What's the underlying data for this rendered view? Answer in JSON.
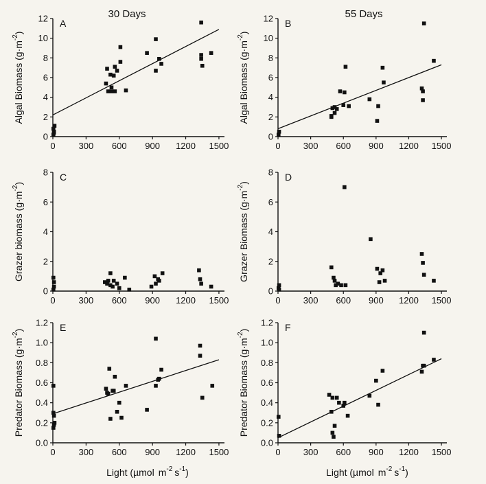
{
  "figure": {
    "col_titles": [
      "30 Days",
      "55 Days"
    ],
    "xlabel_prefix": "Light (µmol",
    "xlabel_unit": "m",
    "xlabel_exp1": "-2",
    "xlabel_s": "s",
    "xlabel_exp2": "-1",
    "xlabel_close": ")"
  },
  "chart_data": [
    {
      "type": "scatter",
      "panel": "A",
      "title": "30 Days",
      "ylabel": "Algal Biomass (g·m",
      "ylabel_exp": "-2",
      "ylabel_close": ")",
      "xlim": [
        0,
        1550
      ],
      "ylim": [
        0,
        12
      ],
      "xticks": [
        0,
        300,
        600,
        900,
        1200,
        1500
      ],
      "yticks": [
        0,
        2,
        4,
        6,
        8,
        10,
        12
      ],
      "points": [
        [
          5,
          0.2
        ],
        [
          10,
          0.5
        ],
        [
          5,
          0.8
        ],
        [
          15,
          1.1
        ],
        [
          10,
          0.4
        ],
        [
          490,
          6.9
        ],
        [
          480,
          5.4
        ],
        [
          500,
          4.6
        ],
        [
          520,
          6.3
        ],
        [
          530,
          4.6
        ],
        [
          530,
          5.0
        ],
        [
          550,
          6.2
        ],
        [
          560,
          4.6
        ],
        [
          560,
          7.1
        ],
        [
          580,
          6.7
        ],
        [
          610,
          7.6
        ],
        [
          610,
          9.1
        ],
        [
          660,
          4.7
        ],
        [
          850,
          8.5
        ],
        [
          930,
          9.9
        ],
        [
          930,
          6.7
        ],
        [
          960,
          7.9
        ],
        [
          980,
          7.4
        ],
        [
          1340,
          11.6
        ],
        [
          1340,
          7.9
        ],
        [
          1350,
          7.2
        ],
        [
          1340,
          8.3
        ],
        [
          1430,
          8.5
        ]
      ],
      "fit": {
        "x": [
          0,
          1500
        ],
        "y": [
          2.2,
          10.9
        ]
      }
    },
    {
      "type": "scatter",
      "panel": "B",
      "title": "55 Days",
      "ylabel": "Algal Biomass (g·m",
      "ylabel_exp": "-2",
      "ylabel_close": ")",
      "xlim": [
        0,
        1550
      ],
      "ylim": [
        0,
        12
      ],
      "xticks": [
        0,
        300,
        600,
        900,
        1200,
        1500
      ],
      "yticks": [
        0,
        2,
        4,
        6,
        8,
        10,
        12
      ],
      "points": [
        [
          5,
          0.2
        ],
        [
          10,
          0.5
        ],
        [
          490,
          2.1
        ],
        [
          490,
          2.0
        ],
        [
          500,
          2.9
        ],
        [
          520,
          2.4
        ],
        [
          520,
          3.0
        ],
        [
          540,
          2.8
        ],
        [
          570,
          4.6
        ],
        [
          600,
          3.2
        ],
        [
          610,
          4.5
        ],
        [
          620,
          7.1
        ],
        [
          650,
          3.1
        ],
        [
          840,
          3.8
        ],
        [
          910,
          1.6
        ],
        [
          920,
          3.1
        ],
        [
          960,
          7.0
        ],
        [
          970,
          5.5
        ],
        [
          1320,
          4.9
        ],
        [
          1330,
          4.6
        ],
        [
          1330,
          3.7
        ],
        [
          1340,
          11.5
        ],
        [
          1430,
          7.7
        ]
      ],
      "fit": {
        "x": [
          0,
          1500
        ],
        "y": [
          0.8,
          7.3
        ]
      }
    },
    {
      "type": "scatter",
      "panel": "C",
      "title": "",
      "ylabel": "Grazer biomass (g·m",
      "ylabel_exp": "-2",
      "ylabel_close": ")",
      "xlim": [
        0,
        1550
      ],
      "ylim": [
        0,
        8
      ],
      "xticks": [
        0,
        300,
        600,
        900,
        1200,
        1500
      ],
      "yticks": [
        0,
        2,
        4,
        6,
        8
      ],
      "points": [
        [
          5,
          0.1
        ],
        [
          10,
          0.3
        ],
        [
          5,
          0.9
        ],
        [
          10,
          0.6
        ],
        [
          470,
          0.6
        ],
        [
          490,
          0.5
        ],
        [
          500,
          0.7
        ],
        [
          520,
          1.2
        ],
        [
          520,
          0.4
        ],
        [
          540,
          0.3
        ],
        [
          550,
          0.7
        ],
        [
          580,
          0.5
        ],
        [
          600,
          0.2
        ],
        [
          650,
          0.9
        ],
        [
          690,
          0.1
        ],
        [
          890,
          0.3
        ],
        [
          920,
          1.0
        ],
        [
          930,
          0.5
        ],
        [
          950,
          0.8
        ],
        [
          960,
          0.7
        ],
        [
          990,
          1.2
        ],
        [
          1320,
          1.4
        ],
        [
          1330,
          0.8
        ],
        [
          1340,
          0.5
        ],
        [
          1430,
          0.3
        ]
      ]
    },
    {
      "type": "scatter",
      "panel": "D",
      "title": "",
      "ylabel": "Grazer Biomass (g·m",
      "ylabel_exp": "-2",
      "ylabel_close": ")",
      "xlim": [
        0,
        1550
      ],
      "ylim": [
        0,
        8
      ],
      "xticks": [
        0,
        300,
        600,
        900,
        1200,
        1500
      ],
      "yticks": [
        0,
        2,
        4,
        6,
        8
      ],
      "points": [
        [
          5,
          0.2
        ],
        [
          10,
          0.4
        ],
        [
          10,
          0.1
        ],
        [
          490,
          1.6
        ],
        [
          510,
          0.9
        ],
        [
          520,
          0.7
        ],
        [
          530,
          0.4
        ],
        [
          550,
          0.5
        ],
        [
          580,
          0.4
        ],
        [
          610,
          7.0
        ],
        [
          620,
          0.4
        ],
        [
          850,
          3.5
        ],
        [
          910,
          1.5
        ],
        [
          930,
          0.6
        ],
        [
          940,
          1.2
        ],
        [
          960,
          1.4
        ],
        [
          980,
          0.7
        ],
        [
          1320,
          2.5
        ],
        [
          1330,
          1.9
        ],
        [
          1340,
          1.1
        ],
        [
          1430,
          0.7
        ]
      ]
    },
    {
      "type": "scatter",
      "panel": "E",
      "title": "",
      "ylabel": "Predator Biomass (g·m",
      "ylabel_exp": "-2",
      "ylabel_close": ")",
      "xlim": [
        0,
        1550
      ],
      "ylim": [
        0,
        1.2
      ],
      "xticks": [
        0,
        300,
        600,
        900,
        1200,
        1500
      ],
      "yticks": [
        0.0,
        0.2,
        0.4,
        0.6,
        0.8,
        1.0,
        1.2
      ],
      "yticks_labels": [
        "0.0",
        "0.2",
        "0.4",
        "0.6",
        "0.8",
        "1.0",
        "1.2"
      ],
      "points": [
        [
          5,
          0.57
        ],
        [
          5,
          0.3
        ],
        [
          10,
          0.27
        ],
        [
          5,
          0.15
        ],
        [
          10,
          0.18
        ],
        [
          15,
          0.2
        ],
        [
          480,
          0.54
        ],
        [
          490,
          0.5
        ],
        [
          500,
          0.49
        ],
        [
          510,
          0.74
        ],
        [
          520,
          0.24
        ],
        [
          540,
          0.52
        ],
        [
          550,
          0.52
        ],
        [
          560,
          0.66
        ],
        [
          580,
          0.31
        ],
        [
          600,
          0.4
        ],
        [
          620,
          0.25
        ],
        [
          660,
          0.57
        ],
        [
          850,
          0.33
        ],
        [
          930,
          1.04
        ],
        [
          930,
          0.57
        ],
        [
          950,
          0.63
        ],
        [
          960,
          0.64
        ],
        [
          980,
          0.73
        ],
        [
          1330,
          0.97
        ],
        [
          1330,
          0.87
        ],
        [
          1350,
          0.45
        ],
        [
          1440,
          0.57
        ]
      ],
      "fit": {
        "x": [
          0,
          1500
        ],
        "y": [
          0.29,
          0.83
        ]
      }
    },
    {
      "type": "scatter",
      "panel": "F",
      "title": "",
      "ylabel": "Predator Biomass (g·m",
      "ylabel_exp": "-2",
      "ylabel_close": ")",
      "xlim": [
        0,
        1550
      ],
      "ylim": [
        0,
        1.2
      ],
      "xticks": [
        0,
        300,
        600,
        900,
        1200,
        1500
      ],
      "yticks": [
        0.0,
        0.2,
        0.4,
        0.6,
        0.8,
        1.0,
        1.2
      ],
      "yticks_labels": [
        "0.0",
        "0.2",
        "0.4",
        "0.6",
        "0.8",
        "1.0",
        "1.2"
      ],
      "points": [
        [
          5,
          0.26
        ],
        [
          10,
          0.07
        ],
        [
          470,
          0.48
        ],
        [
          490,
          0.31
        ],
        [
          500,
          0.45
        ],
        [
          500,
          0.1
        ],
        [
          510,
          0.06
        ],
        [
          520,
          0.17
        ],
        [
          540,
          0.45
        ],
        [
          560,
          0.4
        ],
        [
          600,
          0.37
        ],
        [
          610,
          0.4
        ],
        [
          640,
          0.27
        ],
        [
          840,
          0.47
        ],
        [
          900,
          0.62
        ],
        [
          920,
          0.38
        ],
        [
          960,
          0.72
        ],
        [
          1320,
          0.71
        ],
        [
          1330,
          0.77
        ],
        [
          1340,
          0.77
        ],
        [
          1340,
          1.1
        ],
        [
          1430,
          0.83
        ]
      ],
      "fit": {
        "x": [
          0,
          1500
        ],
        "y": [
          0.05,
          0.84
        ]
      }
    }
  ]
}
